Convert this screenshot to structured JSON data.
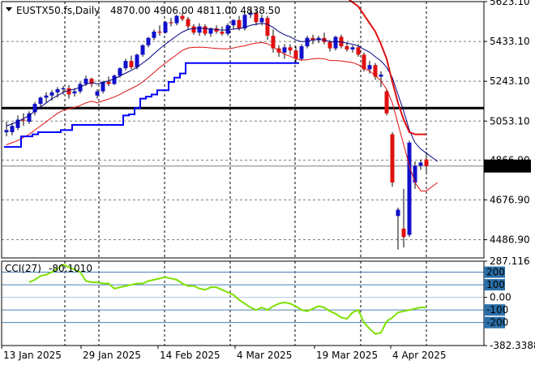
{
  "header": {
    "symbol": "EUSTX50.fs,Daily",
    "ohlc": "4870.00 4906.00 4811.00 4838.50"
  },
  "colors": {
    "up_candle": "#1010cc",
    "down_candle": "#e01010",
    "wick": "#000000",
    "ma_fast": "#e01010",
    "ma_envelope_upper": "#00007f",
    "ma_envelope_lower": "#e01010",
    "supertrend_blue": "#0000ff",
    "supertrend_red": "#e01010",
    "cci_line": "#7fe000",
    "level_line": "#000000",
    "price_tag_bg": "#000000",
    "cci_level_bg": "#2a6fa8"
  },
  "chart_data": [
    {
      "type": "candlestick",
      "title": "EUSTX50.fs,Daily",
      "x_labels": [
        "13 Jan 2025",
        "29 Jan 2025",
        "14 Feb 2025",
        "4 Mar 2025",
        "19 Mar 2025",
        "4 Apr 2025"
      ],
      "y_ticks": [
        "5623.10",
        "5433.10",
        "5243.10",
        "5053.10",
        "4866.90",
        "4676.90",
        "4486.90"
      ],
      "ylim": [
        4400,
        5623.1
      ],
      "current_price": 4838.5,
      "current_price_label": "4838.50",
      "horizontal_level": 5115,
      "candles": [
        [
          5000,
          5050,
          4980,
          5010
        ],
        [
          5000,
          5045,
          4985,
          5030
        ],
        [
          5020,
          5080,
          5010,
          5060
        ],
        [
          5060,
          5090,
          5030,
          5055
        ],
        [
          5050,
          5100,
          5040,
          5090
        ],
        [
          5095,
          5145,
          5080,
          5135
        ],
        [
          5135,
          5170,
          5110,
          5165
        ],
        [
          5165,
          5190,
          5140,
          5175
        ],
        [
          5175,
          5200,
          5150,
          5190
        ],
        [
          5190,
          5215,
          5165,
          5205
        ],
        [
          5205,
          5220,
          5180,
          5210
        ],
        [
          5210,
          5225,
          5160,
          5180
        ],
        [
          5185,
          5210,
          5170,
          5195
        ],
        [
          5195,
          5240,
          5185,
          5230
        ],
        [
          5230,
          5270,
          5220,
          5255
        ],
        [
          5255,
          5260,
          5215,
          5230
        ],
        [
          5175,
          5205,
          5160,
          5195
        ],
        [
          5195,
          5245,
          5185,
          5240
        ],
        [
          5240,
          5265,
          5220,
          5230
        ],
        [
          5230,
          5275,
          5225,
          5270
        ],
        [
          5270,
          5310,
          5260,
          5305
        ],
        [
          5305,
          5350,
          5295,
          5340
        ],
        [
          5340,
          5365,
          5300,
          5310
        ],
        [
          5310,
          5375,
          5300,
          5370
        ],
        [
          5370,
          5420,
          5360,
          5415
        ],
        [
          5415,
          5455,
          5405,
          5450
        ],
        [
          5450,
          5490,
          5440,
          5480
        ],
        [
          5480,
          5510,
          5460,
          5475
        ],
        [
          5475,
          5530,
          5470,
          5525
        ],
        [
          5525,
          5545,
          5505,
          5520
        ],
        [
          5520,
          5560,
          5510,
          5555
        ],
        [
          5555,
          5570,
          5530,
          5540
        ],
        [
          5540,
          5550,
          5490,
          5505
        ],
        [
          5505,
          5515,
          5465,
          5475
        ],
        [
          5475,
          5520,
          5460,
          5505
        ],
        [
          5505,
          5515,
          5460,
          5470
        ],
        [
          5470,
          5500,
          5455,
          5495
        ],
        [
          5495,
          5510,
          5470,
          5480
        ],
        [
          5480,
          5505,
          5460,
          5470
        ],
        [
          5470,
          5520,
          5460,
          5510
        ],
        [
          5510,
          5540,
          5490,
          5535
        ],
        [
          5535,
          5555,
          5485,
          5495
        ],
        [
          5495,
          5565,
          5485,
          5560
        ],
        [
          5560,
          5590,
          5545,
          5570
        ],
        [
          5570,
          5580,
          5510,
          5525
        ],
        [
          5525,
          5560,
          5510,
          5545
        ],
        [
          5545,
          5555,
          5440,
          5460
        ],
        [
          5460,
          5490,
          5380,
          5400
        ],
        [
          5400,
          5415,
          5360,
          5380
        ],
        [
          5380,
          5420,
          5350,
          5405
        ],
        [
          5405,
          5420,
          5370,
          5390
        ],
        [
          5390,
          5410,
          5330,
          5350
        ],
        [
          5350,
          5420,
          5340,
          5410
        ],
        [
          5410,
          5460,
          5400,
          5450
        ],
        [
          5450,
          5465,
          5420,
          5440
        ],
        [
          5440,
          5460,
          5425,
          5450
        ],
        [
          5450,
          5475,
          5420,
          5430
        ],
        [
          5430,
          5440,
          5385,
          5400
        ],
        [
          5400,
          5460,
          5390,
          5455
        ],
        [
          5455,
          5465,
          5400,
          5410
        ],
        [
          5410,
          5430,
          5385,
          5395
        ],
        [
          5395,
          5415,
          5380,
          5405
        ],
        [
          5405,
          5420,
          5360,
          5370
        ],
        [
          5370,
          5380,
          5290,
          5300
        ],
        [
          5300,
          5340,
          5280,
          5320
        ],
        [
          5320,
          5330,
          5250,
          5265
        ],
        [
          5265,
          5290,
          5215,
          5275
        ],
        [
          5195,
          5205,
          5080,
          5090
        ],
        [
          4990,
          5000,
          4740,
          4760
        ],
        [
          4600,
          4640,
          4440,
          4630
        ],
        [
          4540,
          4730,
          4450,
          4500
        ],
        [
          4510,
          4960,
          4500,
          4950
        ],
        [
          4760,
          4860,
          4730,
          4840
        ],
        [
          4840,
          4870,
          4820,
          4855
        ],
        [
          4870,
          4906,
          4811,
          4838.5
        ]
      ],
      "ma_upper": [
        5030,
        5040,
        5050,
        5065,
        5080,
        5100,
        5120,
        5140,
        5160,
        5175,
        5190,
        5200,
        5205,
        5215,
        5228,
        5238,
        5230,
        5238,
        5245,
        5255,
        5268,
        5282,
        5295,
        5310,
        5330,
        5350,
        5375,
        5398,
        5420,
        5440,
        5460,
        5478,
        5490,
        5495,
        5497,
        5495,
        5493,
        5490,
        5487,
        5488,
        5492,
        5495,
        5500,
        5510,
        5515,
        5520,
        5515,
        5500,
        5480,
        5465,
        5455,
        5440,
        5432,
        5435,
        5440,
        5442,
        5440,
        5432,
        5432,
        5430,
        5425,
        5420,
        5412,
        5395,
        5382,
        5360,
        5340,
        5310,
        5260,
        5180,
        5100,
        5010,
        4950,
        4920,
        4900,
        4880,
        4860
      ],
      "ma_lower": [
        4940,
        4950,
        4960,
        4975,
        4990,
        5010,
        5030,
        5050,
        5070,
        5090,
        5105,
        5112,
        5118,
        5128,
        5140,
        5148,
        5140,
        5150,
        5158,
        5168,
        5180,
        5195,
        5208,
        5222,
        5240,
        5262,
        5285,
        5308,
        5330,
        5350,
        5370,
        5390,
        5402,
        5405,
        5406,
        5405,
        5402,
        5400,
        5398,
        5398,
        5402,
        5408,
        5412,
        5420,
        5425,
        5428,
        5422,
        5408,
        5388,
        5372,
        5362,
        5350,
        5344,
        5346,
        5350,
        5352,
        5350,
        5342,
        5342,
        5340,
        5336,
        5332,
        5322,
        5305,
        5292,
        5270,
        5245,
        5205,
        5140,
        5040,
        4940,
        4840,
        4760,
        4720,
        4720,
        4740,
        4760
      ],
      "supertrend": [
        4930,
        4930,
        4930,
        4980,
        4980,
        4990,
        5000,
        5000,
        5000,
        5000,
        5010,
        5010,
        5035,
        5035,
        5035,
        5035,
        5035,
        5035,
        5035,
        5035,
        5035,
        5080,
        5085,
        5115,
        5160,
        5170,
        5180,
        5200,
        5200,
        5240,
        5260,
        5280,
        5330,
        5330,
        5330,
        5330,
        5330,
        5330,
        5330,
        5330,
        5330,
        5330,
        5330,
        5330,
        5330,
        5330,
        5330,
        5330,
        5330,
        5330,
        5330,
        5330
      ],
      "supertrend_red": [
        5680,
        5660,
        5640,
        5620,
        5600,
        5560,
        5520,
        5480,
        5420,
        5350,
        5240,
        5140,
        5060,
        5000,
        4990,
        4990,
        4990
      ]
    },
    {
      "type": "line",
      "title": "CCI(27) -80.1010",
      "label": "CCI(27)",
      "current_value_label": "-80.1010",
      "y_ticks": [
        "287.116",
        "200",
        "100",
        "0.00",
        "-100",
        "-200",
        "-382.3388"
      ],
      "levels": [
        200,
        100,
        0,
        -100,
        -200
      ],
      "ylim": [
        -382.3388,
        287.116
      ],
      "values": [
        120,
        140,
        170,
        180,
        200,
        230,
        260,
        240,
        220,
        200,
        130,
        120,
        120,
        110,
        110,
        70,
        80,
        90,
        100,
        110,
        110,
        130,
        140,
        150,
        160,
        150,
        140,
        110,
        90,
        90,
        70,
        60,
        80,
        80,
        60,
        40,
        20,
        -20,
        -50,
        -80,
        -100,
        -80,
        -100,
        -70,
        -50,
        -40,
        -50,
        -70,
        -100,
        -110,
        -90,
        -70,
        -80,
        -110,
        -130,
        -160,
        -170,
        -120,
        -100,
        -200,
        -250,
        -290,
        -280,
        -190,
        -160,
        -120,
        -110,
        -100,
        -90,
        -80,
        -80
      ]
    }
  ]
}
